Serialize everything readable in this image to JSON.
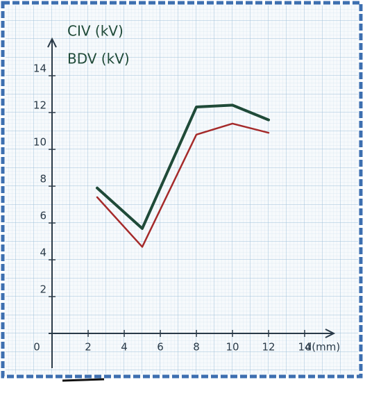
{
  "chart_data": {
    "type": "line",
    "x_label": "d(mm)",
    "x": [
      2.5,
      5,
      8,
      10,
      12
    ],
    "series": [
      {
        "name": "CIV (kV)",
        "color": "#1f4a38",
        "values": [
          7.9,
          5.7,
          12.3,
          12.4,
          11.6
        ]
      },
      {
        "name": "BDV (kV)",
        "color": "#a52a2a",
        "values": [
          7.4,
          4.7,
          10.8,
          11.4,
          10.9
        ]
      }
    ],
    "xlim": [
      0,
      16
    ],
    "xticks": [
      0,
      2,
      4,
      6,
      8,
      10,
      12,
      14
    ],
    "ylim": [
      0,
      16
    ],
    "yticks": [
      2,
      4,
      6,
      8,
      10,
      12,
      14
    ],
    "grid": true
  }
}
